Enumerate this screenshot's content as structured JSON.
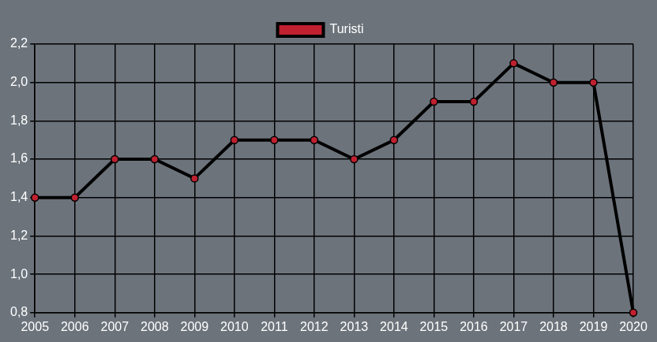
{
  "chart_data": {
    "type": "line",
    "categories": [
      "2005",
      "2006",
      "2007",
      "2008",
      "2009",
      "2010",
      "2011",
      "2012",
      "2013",
      "2014",
      "2015",
      "2016",
      "2017",
      "2018",
      "2019",
      "2020"
    ],
    "series": [
      {
        "name": "Turisti",
        "color": "#c0202f",
        "marker": "circle",
        "values": [
          1.4,
          1.4,
          1.6,
          1.6,
          1.5,
          1.7,
          1.7,
          1.7,
          1.6,
          1.7,
          1.9,
          1.9,
          2.1,
          2.0,
          2.0,
          0.8
        ]
      }
    ],
    "ylim": [
      0.8,
      2.2
    ],
    "yticks": [
      {
        "value": 0.8,
        "label": "0,8"
      },
      {
        "value": 1.0,
        "label": "1,0"
      },
      {
        "value": 1.2,
        "label": "1,2"
      },
      {
        "value": 1.4,
        "label": "1,4"
      },
      {
        "value": 1.6,
        "label": "1,6"
      },
      {
        "value": 1.8,
        "label": "1,8"
      },
      {
        "value": 2.0,
        "label": "2,0"
      },
      {
        "value": 2.2,
        "label": "2,2"
      }
    ],
    "grid": true,
    "legend": "top"
  }
}
